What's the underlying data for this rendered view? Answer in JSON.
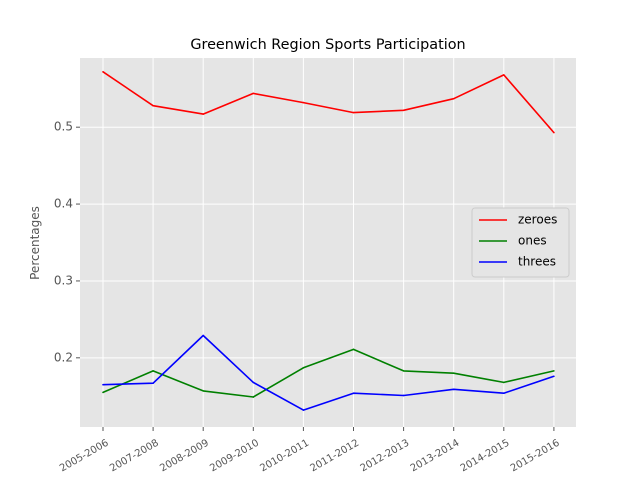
{
  "chart_data": {
    "type": "line",
    "title": "Greenwich Region Sports Participation",
    "xlabel": "",
    "ylabel": "Percentages",
    "categories": [
      "2005-2006",
      "2007-2008",
      "2008-2009",
      "2009-2010",
      "2010-2011",
      "2011-2012",
      "2012-2013",
      "2013-2014",
      "2014-2015",
      "2015-2016"
    ],
    "ylim": [
      0.11,
      0.59
    ],
    "yticks": [
      0.2,
      0.3,
      0.4,
      0.5
    ],
    "ytick_labels": [
      "0.2",
      "0.3",
      "0.4",
      "0.5"
    ],
    "grid": true,
    "legend_position": "right",
    "series": [
      {
        "name": "zeroes",
        "color": "#ff0000",
        "values": [
          0.572,
          0.528,
          0.517,
          0.544,
          0.532,
          0.519,
          0.522,
          0.537,
          0.568,
          0.493
        ]
      },
      {
        "name": "ones",
        "color": "#008000",
        "values": [
          0.155,
          0.183,
          0.157,
          0.149,
          0.187,
          0.211,
          0.183,
          0.18,
          0.168,
          0.183
        ]
      },
      {
        "name": "threes",
        "color": "#0000ff",
        "values": [
          0.165,
          0.167,
          0.229,
          0.168,
          0.132,
          0.154,
          0.151,
          0.159,
          0.154,
          0.176
        ]
      }
    ]
  }
}
